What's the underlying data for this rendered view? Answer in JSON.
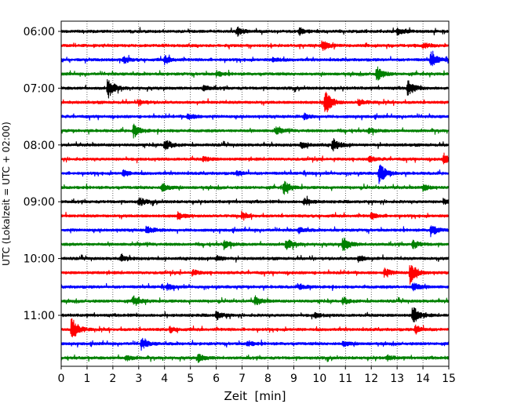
{
  "chart_data": {
    "type": "line",
    "title": "",
    "xlabel": "Zeit  [min]",
    "ylabel": "UTC (Lokalzeit = UTC + 02:00)",
    "xlim": [
      0,
      15
    ],
    "x_ticks": [
      0,
      1,
      2,
      3,
      4,
      5,
      6,
      7,
      8,
      9,
      10,
      11,
      12,
      13,
      14,
      15
    ],
    "y_tick_labels": [
      "06:00",
      "07:00",
      "08:00",
      "09:00",
      "10:00",
      "11:00"
    ],
    "grid": "vertical dotted lines at each minute",
    "colors": [
      "#000000",
      "#ff0000",
      "#0000ff",
      "#008000"
    ],
    "series": [
      {
        "values": [
          "06:00"
        ],
        "events": [
          [
            6.8,
            0.5
          ],
          [
            9.2,
            0.4
          ],
          [
            13.0,
            0.35
          ]
        ]
      },
      {
        "values": [
          "06:15"
        ],
        "events": [
          [
            10.1,
            0.6
          ],
          [
            14.0,
            0.3
          ]
        ]
      },
      {
        "values": [
          "06:30"
        ],
        "events": [
          [
            2.4,
            0.35
          ],
          [
            4.0,
            0.45
          ],
          [
            8.2,
            0.3
          ],
          [
            14.3,
            1.0
          ]
        ]
      },
      {
        "values": [
          "06:45"
        ],
        "events": [
          [
            12.2,
            0.9
          ],
          [
            6.0,
            0.3
          ]
        ]
      },
      {
        "values": [
          "07:00"
        ],
        "events": [
          [
            1.8,
            1.3
          ],
          [
            13.4,
            1.0
          ],
          [
            5.5,
            0.3
          ]
        ]
      },
      {
        "values": [
          "07:15"
        ],
        "events": [
          [
            10.2,
            1.6
          ],
          [
            11.5,
            0.4
          ],
          [
            3.0,
            0.3
          ]
        ]
      },
      {
        "values": [
          "07:30"
        ],
        "events": [
          [
            4.9,
            0.35
          ],
          [
            9.4,
            0.3
          ]
        ]
      },
      {
        "values": [
          "07:45"
        ],
        "events": [
          [
            2.8,
            0.75
          ],
          [
            8.3,
            0.4
          ],
          [
            11.9,
            0.3
          ]
        ]
      },
      {
        "values": [
          "08:00"
        ],
        "events": [
          [
            4.0,
            0.7
          ],
          [
            10.5,
            0.85
          ],
          [
            9.3,
            0.35
          ]
        ]
      },
      {
        "values": [
          "08:15"
        ],
        "events": [
          [
            14.8,
            0.6
          ],
          [
            5.5,
            0.3
          ],
          [
            11.9,
            0.3
          ]
        ]
      },
      {
        "values": [
          "08:30"
        ],
        "events": [
          [
            12.3,
            1.3
          ],
          [
            2.4,
            0.35
          ],
          [
            6.8,
            0.3
          ]
        ]
      },
      {
        "values": [
          "08:45"
        ],
        "events": [
          [
            3.9,
            0.6
          ],
          [
            8.6,
            0.8
          ],
          [
            14.0,
            0.35
          ]
        ]
      },
      {
        "values": [
          "09:00"
        ],
        "events": [
          [
            3.0,
            0.5
          ],
          [
            9.4,
            0.4
          ],
          [
            14.8,
            0.3
          ]
        ]
      },
      {
        "values": [
          "09:15"
        ],
        "events": [
          [
            4.5,
            0.35
          ],
          [
            7.0,
            0.3
          ],
          [
            12.0,
            0.35
          ]
        ]
      },
      {
        "values": [
          "09:30"
        ],
        "events": [
          [
            3.3,
            0.45
          ],
          [
            14.3,
            0.7
          ],
          [
            9.2,
            0.3
          ]
        ]
      },
      {
        "values": [
          "09:45"
        ],
        "events": [
          [
            6.3,
            0.5
          ],
          [
            8.7,
            0.7
          ],
          [
            10.9,
            0.9
          ],
          [
            13.6,
            0.5
          ]
        ]
      },
      {
        "values": [
          "10:00"
        ],
        "events": [
          [
            2.3,
            0.35
          ],
          [
            11.5,
            0.35
          ],
          [
            6.0,
            0.3
          ]
        ]
      },
      {
        "values": [
          "10:15"
        ],
        "events": [
          [
            13.5,
            1.3
          ],
          [
            12.5,
            0.5
          ],
          [
            5.1,
            0.3
          ]
        ]
      },
      {
        "values": [
          "10:30"
        ],
        "events": [
          [
            13.6,
            0.6
          ],
          [
            9.2,
            0.35
          ],
          [
            4.1,
            0.3
          ]
        ]
      },
      {
        "values": [
          "10:45"
        ],
        "events": [
          [
            2.8,
            0.65
          ],
          [
            7.5,
            0.5
          ],
          [
            10.9,
            0.4
          ]
        ]
      },
      {
        "values": [
          "11:00"
        ],
        "events": [
          [
            13.6,
            1.1
          ],
          [
            6.0,
            0.5
          ],
          [
            9.8,
            0.3
          ]
        ]
      },
      {
        "values": [
          "11:15"
        ],
        "events": [
          [
            0.4,
            1.6
          ],
          [
            13.7,
            0.5
          ],
          [
            4.2,
            0.3
          ]
        ]
      },
      {
        "values": [
          "11:30"
        ],
        "events": [
          [
            3.1,
            0.65
          ],
          [
            10.9,
            0.35
          ],
          [
            7.2,
            0.3
          ]
        ]
      },
      {
        "values": [
          "11:45"
        ],
        "events": [
          [
            5.3,
            0.45
          ],
          [
            2.5,
            0.3
          ],
          [
            12.6,
            0.3
          ]
        ]
      }
    ]
  }
}
